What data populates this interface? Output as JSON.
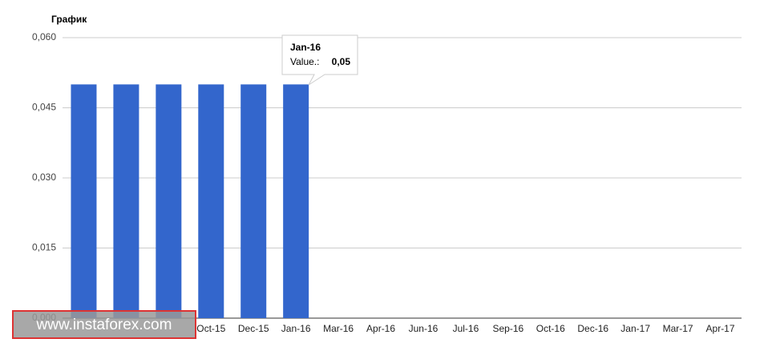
{
  "chart_data": {
    "type": "bar",
    "title": "График",
    "categories": [
      null,
      null,
      null,
      "Oct-15",
      "Dec-15",
      "Jan-16",
      "Mar-16",
      "Apr-16",
      "Jun-16",
      "Jul-16",
      "Sep-16",
      "Oct-16",
      "Dec-16",
      "Jan-17",
      "Mar-17",
      "Apr-17"
    ],
    "values": [
      0.05,
      0.05,
      0.05,
      0.05,
      0.05,
      0.05,
      null,
      null,
      null,
      null,
      null,
      null,
      null,
      null,
      null,
      null
    ],
    "color": "#3366cc",
    "ylim": [
      0,
      0.06
    ],
    "yticks": [
      {
        "value": 0,
        "label": "0,000"
      },
      {
        "value": 0.015,
        "label": "0,015"
      },
      {
        "value": 0.03,
        "label": "0,030"
      },
      {
        "value": 0.045,
        "label": "0,045"
      },
      {
        "value": 0.06,
        "label": "0,060"
      }
    ],
    "grid": true,
    "tooltip": {
      "title": "Jan-16",
      "label": "Value.:",
      "value": "0,05"
    },
    "watermark": "www.instaforex.com"
  }
}
